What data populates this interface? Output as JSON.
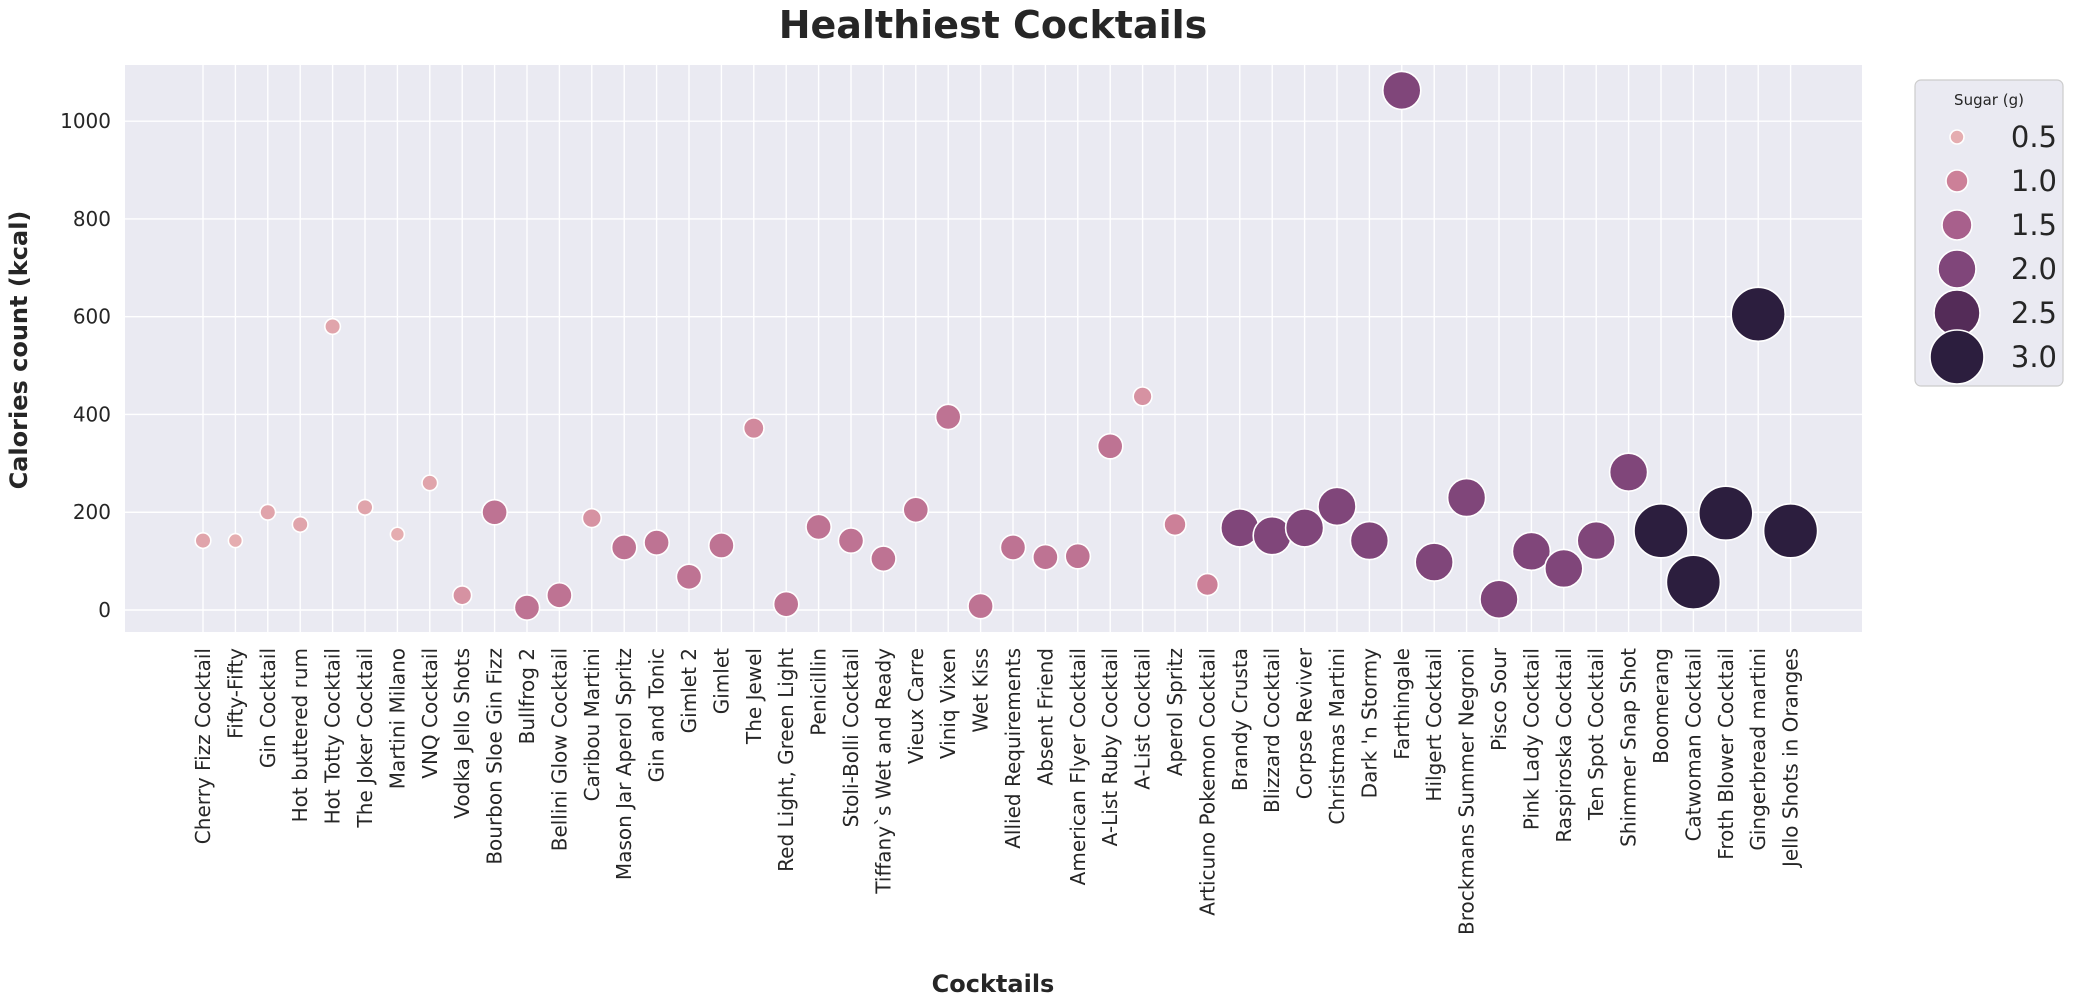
{
  "chart_data": {
    "type": "scatter",
    "title": "Healthiest Cocktails",
    "xlabel": "Cocktails",
    "ylabel": "Calories count (kcal)",
    "ylim": [
      -45,
      1115
    ],
    "yticks": [
      0,
      200,
      400,
      600,
      800,
      1000
    ],
    "grid": true,
    "legend": {
      "title": "Sugar (g)",
      "placement": "outside-right",
      "entries": [
        "0.5",
        "1.0",
        "1.5",
        "2.0",
        "2.5",
        "3.0"
      ],
      "values": [
        0.5,
        1.0,
        1.5,
        2.0,
        2.5,
        3.0
      ]
    },
    "hue": "Sugar (g)",
    "size": "Sugar (g)",
    "categories": [
      "Cherry Fizz Cocktail",
      "Fifty-Fifty",
      "Gin Cocktail",
      "Hot buttered rum",
      "Hot Totty Cocktail",
      "The Joker Cocktail",
      "Martini Milano",
      "VNQ Cocktail",
      "Vodka Jello Shots",
      "Bourbon Sloe Gin Fizz",
      "Bullfrog 2",
      "Bellini Glow Cocktail",
      "Caribou Martini",
      "Mason Jar Aperol Spritz",
      "Gin and Tonic",
      "Gimlet 2",
      "Gimlet",
      "The Jewel",
      "Red Light, Green Light",
      "Penicillin",
      "Stoli-Bolli Cocktail",
      "Tiffany`s Wet and Ready",
      "Vieux Carre",
      "Viniq Vixen",
      "Wet Kiss",
      "Allied Requirements",
      "Absent Friend",
      "American Flyer Cocktail",
      "A-List Ruby Cocktail",
      "A-List Cocktail",
      "Aperol Spritz",
      "Articuno Pokemon Cocktail",
      "Brandy Crusta",
      "Blizzard Cocktail",
      "Corpse Reviver",
      "Christmas Martini",
      "Dark 'n Stormy",
      "Farthingale",
      "Hilgert Cocktail",
      "Brockmans Summer Negroni",
      "Pisco Sour",
      "Pink Lady Cocktail",
      "Raspiroska Cocktail",
      "Ten Spot Cocktail",
      "Shimmer Snap Shot",
      "Boomerang",
      "Catwoman Cocktail",
      "Froth Blower Cocktail",
      "Gingerbread martini",
      "Jello Shots in Oranges"
    ],
    "calories": [
      142,
      142,
      200,
      175,
      580,
      210,
      155,
      260,
      30,
      200,
      5,
      30,
      188,
      128,
      138,
      68,
      132,
      372,
      12,
      170,
      142,
      105,
      205,
      395,
      8,
      128,
      108,
      110,
      335,
      437,
      175,
      52,
      168,
      152,
      168,
      212,
      142,
      1063,
      98,
      230,
      22,
      120,
      85,
      142,
      282,
      162,
      57,
      198,
      605,
      162
    ],
    "sugar": [
      0.6,
      0.5,
      0.6,
      0.6,
      0.6,
      0.6,
      0.5,
      0.6,
      0.8,
      1.2,
      1.2,
      1.2,
      0.8,
      1.2,
      1.2,
      1.2,
      1.2,
      0.9,
      1.2,
      1.2,
      1.2,
      1.2,
      1.2,
      1.2,
      1.2,
      1.2,
      1.2,
      1.2,
      1.2,
      0.8,
      1.0,
      1.0,
      2.0,
      2.0,
      2.0,
      2.0,
      2.0,
      2.0,
      2.0,
      2.0,
      2.0,
      2.0,
      2.0,
      2.0,
      2.0,
      3.0,
      3.0,
      3.0,
      3.0,
      3.0
    ]
  }
}
